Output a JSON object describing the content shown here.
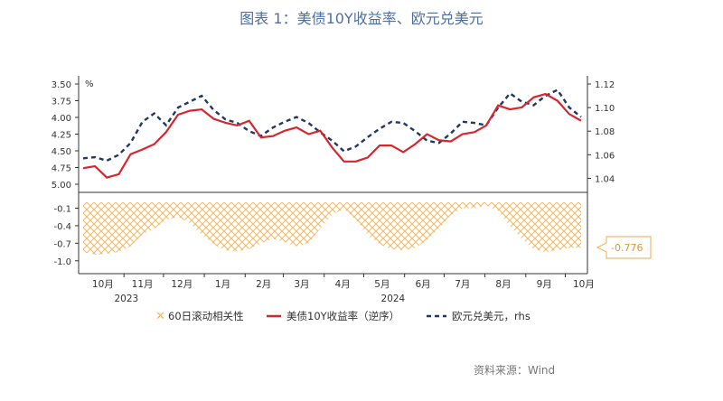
{
  "title": "图表 1：美债10Y收益率、欧元兑美元",
  "source": "资料来源：Wind",
  "colors": {
    "title": "#4f6fa3",
    "us10y": "#d7262d",
    "eurusd": "#1f3864",
    "corr": "#f2b968",
    "axis": "#333333"
  },
  "chart_data": {
    "type": "line",
    "title": "图表 1：美债10Y收益率、欧元兑美元",
    "top_panel": {
      "left_axis": {
        "unit": "%",
        "ticks": [
          "3.50",
          "3.75",
          "4.00",
          "4.25",
          "4.50",
          "4.75",
          "5.00"
        ],
        "ylim": [
          5.0,
          3.5
        ],
        "inverted": true
      },
      "right_axis": {
        "ticks": [
          "1.12",
          "1.10",
          "1.08",
          "1.06",
          "1.04"
        ],
        "ylim": [
          1.035,
          1.12
        ]
      }
    },
    "bottom_panel": {
      "axis": {
        "ticks": [
          "-0.1",
          "-0.4",
          "-0.7",
          "-1.0"
        ],
        "ylim": [
          -1.05,
          0.0
        ]
      },
      "callout": "-0.776"
    },
    "x_axis": {
      "months": [
        "10月",
        "11月",
        "12月",
        "1月",
        "2月",
        "3月",
        "4月",
        "5月",
        "6月",
        "7月",
        "8月",
        "9月",
        "10月"
      ],
      "years": [
        {
          "label": "2023",
          "month": "10月"
        },
        {
          "label": "2024",
          "month": "5月"
        }
      ]
    },
    "legend": [
      "60日滚动相关性",
      "美债10Y收益率（逆序）",
      "欧元兑美元，rhs"
    ],
    "series": [
      {
        "name": "美债10Y收益率（逆序）",
        "axis": "left",
        "x": [
          "2023-10-01",
          "2023-10-10",
          "2023-10-19",
          "2023-10-28",
          "2023-11-06",
          "2023-11-15",
          "2023-11-24",
          "2023-12-03",
          "2023-12-12",
          "2023-12-21",
          "2023-12-30",
          "2024-01-08",
          "2024-01-17",
          "2024-01-26",
          "2024-02-04",
          "2024-02-13",
          "2024-02-22",
          "2024-03-02",
          "2024-03-11",
          "2024-03-20",
          "2024-03-29",
          "2024-04-07",
          "2024-04-16",
          "2024-04-25",
          "2024-05-04",
          "2024-05-13",
          "2024-05-22",
          "2024-05-31",
          "2024-06-09",
          "2024-06-18",
          "2024-06-27",
          "2024-07-06",
          "2024-07-15",
          "2024-07-24",
          "2024-08-02",
          "2024-08-11",
          "2024-08-20",
          "2024-08-29",
          "2024-09-07",
          "2024-09-16",
          "2024-09-25",
          "2024-10-04",
          "2024-10-13"
        ],
        "y": [
          4.76,
          4.73,
          4.9,
          4.85,
          4.55,
          4.48,
          4.4,
          4.22,
          3.96,
          3.9,
          3.88,
          4.02,
          4.08,
          4.12,
          4.05,
          4.3,
          4.28,
          4.2,
          4.15,
          4.25,
          4.2,
          4.45,
          4.66,
          4.66,
          4.6,
          4.42,
          4.42,
          4.52,
          4.4,
          4.25,
          4.34,
          4.36,
          4.25,
          4.22,
          4.12,
          3.82,
          3.88,
          3.85,
          3.7,
          3.65,
          3.75,
          3.95,
          4.05
        ]
      },
      {
        "name": "欧元兑美元，rhs",
        "axis": "right",
        "x": [
          "2023-10-01",
          "2023-10-10",
          "2023-10-19",
          "2023-10-28",
          "2023-11-06",
          "2023-11-15",
          "2023-11-24",
          "2023-12-03",
          "2023-12-12",
          "2023-12-21",
          "2023-12-30",
          "2024-01-08",
          "2024-01-17",
          "2024-01-26",
          "2024-02-04",
          "2024-02-13",
          "2024-02-22",
          "2024-03-02",
          "2024-03-11",
          "2024-03-20",
          "2024-03-29",
          "2024-04-07",
          "2024-04-16",
          "2024-04-25",
          "2024-05-04",
          "2024-05-13",
          "2024-05-22",
          "2024-05-31",
          "2024-06-09",
          "2024-06-18",
          "2024-06-27",
          "2024-07-06",
          "2024-07-15",
          "2024-07-24",
          "2024-08-02",
          "2024-08-11",
          "2024-08-20",
          "2024-08-29",
          "2024-09-07",
          "2024-09-16",
          "2024-09-25",
          "2024-10-04",
          "2024-10-13"
        ],
        "y": [
          1.057,
          1.058,
          1.055,
          1.06,
          1.07,
          1.088,
          1.095,
          1.085,
          1.1,
          1.105,
          1.11,
          1.098,
          1.09,
          1.087,
          1.08,
          1.076,
          1.083,
          1.088,
          1.092,
          1.087,
          1.079,
          1.072,
          1.063,
          1.067,
          1.075,
          1.082,
          1.088,
          1.087,
          1.08,
          1.072,
          1.07,
          1.078,
          1.088,
          1.087,
          1.085,
          1.1,
          1.112,
          1.105,
          1.102,
          1.11,
          1.115,
          1.1,
          1.092
        ]
      },
      {
        "name": "60日滚动相关性",
        "axis": "bottom",
        "type": "area",
        "x": [
          "2023-10-01",
          "2023-10-10",
          "2023-10-19",
          "2023-10-28",
          "2023-11-06",
          "2023-11-15",
          "2023-11-24",
          "2023-12-03",
          "2023-12-12",
          "2023-12-21",
          "2023-12-30",
          "2024-01-08",
          "2024-01-17",
          "2024-01-26",
          "2024-02-04",
          "2024-02-13",
          "2024-02-22",
          "2024-03-02",
          "2024-03-11",
          "2024-03-20",
          "2024-03-29",
          "2024-04-07",
          "2024-04-16",
          "2024-04-25",
          "2024-05-04",
          "2024-05-13",
          "2024-05-22",
          "2024-05-31",
          "2024-06-09",
          "2024-06-18",
          "2024-06-27",
          "2024-07-06",
          "2024-07-15",
          "2024-07-24",
          "2024-08-02",
          "2024-08-11",
          "2024-08-20",
          "2024-08-29",
          "2024-09-07",
          "2024-09-16",
          "2024-09-25",
          "2024-10-04",
          "2024-10-13"
        ],
        "y": [
          -0.85,
          -0.9,
          -0.88,
          -0.85,
          -0.75,
          -0.55,
          -0.45,
          -0.3,
          -0.25,
          -0.35,
          -0.55,
          -0.72,
          -0.82,
          -0.84,
          -0.8,
          -0.7,
          -0.62,
          -0.68,
          -0.75,
          -0.7,
          -0.45,
          -0.2,
          -0.12,
          -0.3,
          -0.55,
          -0.72,
          -0.8,
          -0.82,
          -0.78,
          -0.65,
          -0.45,
          -0.22,
          -0.1,
          -0.1,
          -0.05,
          -0.15,
          -0.4,
          -0.62,
          -0.8,
          -0.85,
          -0.82,
          -0.78,
          -0.776
        ]
      }
    ]
  }
}
